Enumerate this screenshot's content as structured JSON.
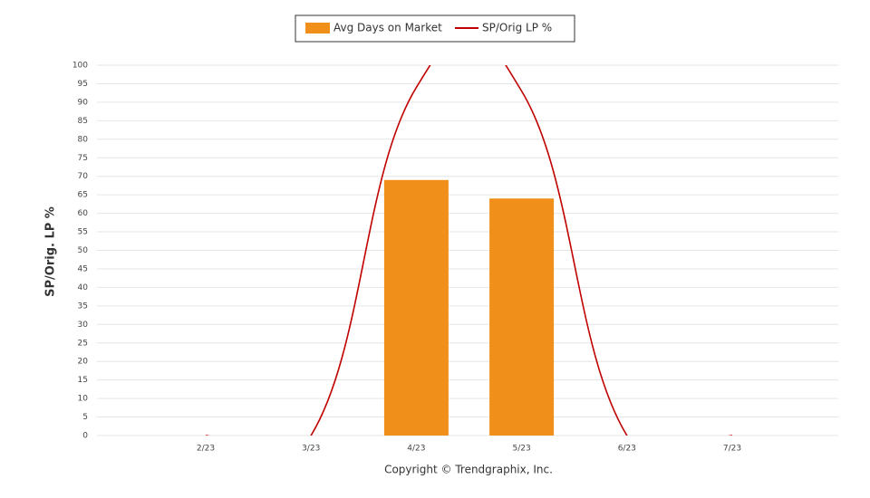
{
  "chart_data": {
    "type": "bar",
    "y_label": "SP/Orig. LP %",
    "note": "Copyright © Trendgraphix, Inc.",
    "categories": [
      "2/23",
      "3/23",
      "4/23",
      "5/23",
      "6/23",
      "7/23"
    ],
    "series": [
      {
        "name": "Avg Days on Market",
        "type": "bar",
        "color": "#f0901a",
        "values": [
          0,
          0,
          69,
          64,
          0,
          0
        ]
      },
      {
        "name": "SP/Orig LP %",
        "type": "line",
        "color": "#c00000",
        "values": [
          0,
          0,
          94,
          93,
          0,
          0
        ]
      }
    ],
    "ylim": [
      0,
      100
    ],
    "yticks": [
      0,
      5,
      10,
      15,
      20,
      25,
      30,
      35,
      40,
      45,
      50,
      55,
      60,
      65,
      70,
      75,
      80,
      85,
      90,
      95,
      100
    ],
    "grid": true
  }
}
